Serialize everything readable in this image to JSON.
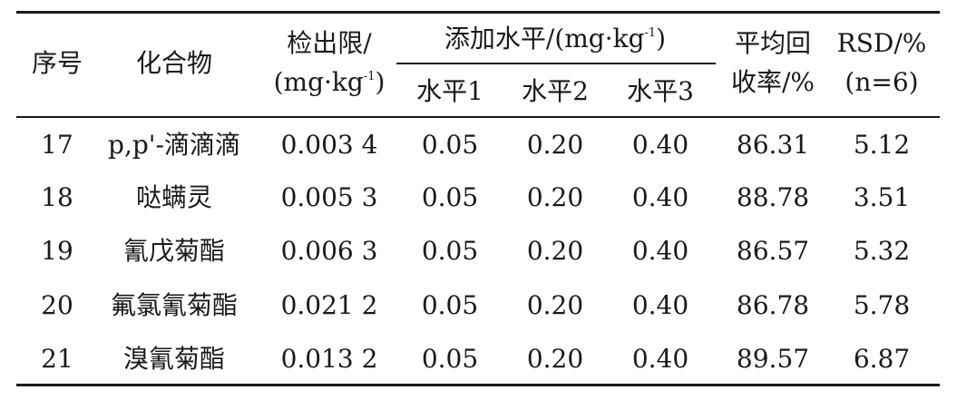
{
  "table": {
    "headers": {
      "index": "序号",
      "compound": "化合物",
      "lod_line1": "检出限/",
      "lod_line2_pre": "(mg·kg",
      "lod_line2_sup": "-1",
      "lod_line2_post": ")",
      "spike_pre": "添加水平/(mg·kg",
      "spike_sup": "-1",
      "spike_post": ")",
      "level1": "水平1",
      "level2": "水平2",
      "level3": "水平3",
      "recovery_line1": "平均回",
      "recovery_line2": "收率/%",
      "rsd_line1": "RSD/%",
      "rsd_line2": "(n=6)"
    },
    "rows": [
      {
        "index": "17",
        "compound": "p,p'-滴滴滴",
        "lod": "0.003 4",
        "level1": "0.05",
        "level2": "0.20",
        "level3": "0.40",
        "recovery": "86.31",
        "rsd": "5.12"
      },
      {
        "index": "18",
        "compound": "哒螨灵",
        "lod": "0.005 3",
        "level1": "0.05",
        "level2": "0.20",
        "level3": "0.40",
        "recovery": "88.78",
        "rsd": "3.51"
      },
      {
        "index": "19",
        "compound": "氰戊菊酯",
        "lod": "0.006 3",
        "level1": "0.05",
        "level2": "0.20",
        "level3": "0.40",
        "recovery": "86.57",
        "rsd": "5.32"
      },
      {
        "index": "20",
        "compound": "氟氯氰菊酯",
        "lod": "0.021 2",
        "level1": "0.05",
        "level2": "0.20",
        "level3": "0.40",
        "recovery": "86.78",
        "rsd": "5.78"
      },
      {
        "index": "21",
        "compound": "溴氰菊酯",
        "lod": "0.013 2",
        "level1": "0.05",
        "level2": "0.20",
        "level3": "0.40",
        "recovery": "89.57",
        "rsd": "6.87"
      }
    ]
  }
}
